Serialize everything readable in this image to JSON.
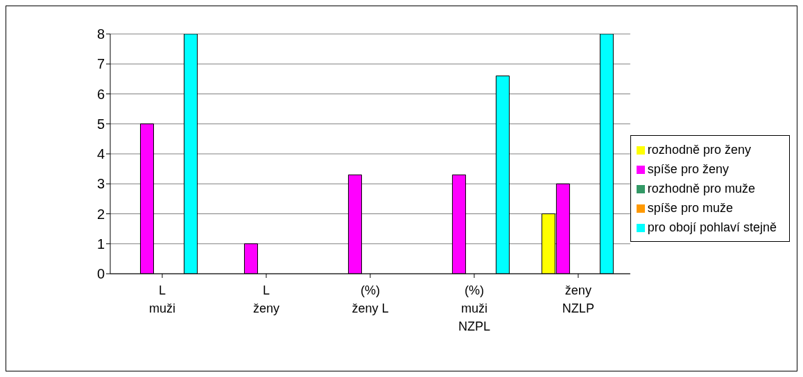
{
  "chart_data": {
    "type": "bar",
    "categories": [
      "L\nmuži",
      "L\nženy",
      "(%)\nženy L",
      "(%)\nmuži\nNZPL",
      "ženy\nNZLP"
    ],
    "series": [
      {
        "name": "rozhodně pro ženy",
        "color": "#ffff00",
        "values": [
          0,
          0,
          0,
          0,
          2
        ]
      },
      {
        "name": "spíše pro ženy",
        "color": "#ff00ff",
        "values": [
          5,
          1,
          3.3,
          3.3,
          3
        ]
      },
      {
        "name": "rozhodně pro muže",
        "color": "#339966",
        "values": [
          0,
          0,
          0,
          0,
          0
        ]
      },
      {
        "name": "spíše pro muže",
        "color": "#ff9900",
        "values": [
          0,
          0,
          0,
          0,
          0
        ]
      },
      {
        "name": "pro obojí pohlaví stejně",
        "color": "#00ffff",
        "values": [
          8,
          0,
          0,
          6.6,
          8
        ]
      }
    ],
    "ylim": [
      0,
      8
    ],
    "yticks": [
      0,
      1,
      2,
      3,
      4,
      5,
      6,
      7,
      8
    ],
    "grid": "y",
    "legend": "right"
  }
}
